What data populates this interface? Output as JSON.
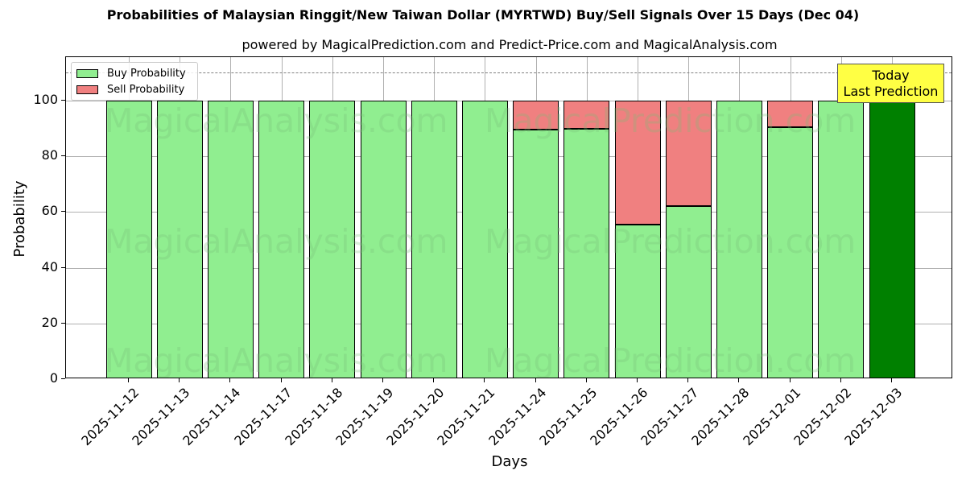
{
  "header": {
    "title": "Probabilities of Malaysian Ringgit/New Taiwan Dollar (MYRTWD) Buy/Sell Signals Over 15 Days (Dec 04)",
    "subtitle": "powered by MagicalPrediction.com and Predict-Price.com and MagicalAnalysis.com"
  },
  "axes": {
    "xlabel": "Days",
    "ylabel": "Probability",
    "yticks": [
      "0",
      "20",
      "40",
      "60",
      "80",
      "100"
    ]
  },
  "legend": {
    "buy_label": "Buy Probability",
    "sell_label": "Sell Probability"
  },
  "annotation": {
    "line1": "Today",
    "line2": "Last Prediction"
  },
  "watermarks": [
    "MagicalAnalysis.com",
    "MagicalPrediction.com"
  ],
  "colors": {
    "buy": "#90ee90",
    "sell": "#f08080",
    "today_buy": "#008000",
    "annotation_bg": "#ffff44"
  },
  "chart_data": {
    "type": "bar",
    "stacked": true,
    "title": "Probabilities of Malaysian Ringgit/New Taiwan Dollar (MYRTWD) Buy/Sell Signals Over 15 Days (Dec 04)",
    "subtitle": "powered by MagicalPrediction.com and Predict-Price.com and MagicalAnalysis.com",
    "xlabel": "Days",
    "ylabel": "Probability",
    "ylim": [
      0,
      115
    ],
    "yticks": [
      0,
      20,
      40,
      60,
      80,
      100
    ],
    "grid": true,
    "legend_position": "upper left",
    "categories": [
      "2025-11-12",
      "2025-11-13",
      "2025-11-14",
      "2025-11-17",
      "2025-11-18",
      "2025-11-19",
      "2025-11-20",
      "2025-11-21",
      "2025-11-24",
      "2025-11-25",
      "2025-11-26",
      "2025-11-27",
      "2025-11-28",
      "2025-12-01",
      "2025-12-02",
      "2025-12-03"
    ],
    "series": [
      {
        "name": "Buy Probability",
        "color": "#90ee90",
        "values": [
          100,
          100,
          100,
          100,
          100,
          100,
          100,
          100,
          89.6,
          89.9,
          55.6,
          62.1,
          100,
          90.4,
          100,
          100
        ]
      },
      {
        "name": "Sell Probability",
        "color": "#f08080",
        "values": [
          0,
          0,
          0,
          0,
          0,
          0,
          0,
          0,
          10.4,
          10.1,
          44.4,
          37.9,
          0,
          9.6,
          0,
          0
        ]
      }
    ],
    "highlight": {
      "category": "2025-12-03",
      "color": "#008000",
      "label": "Today\nLast Prediction"
    },
    "reference_line": {
      "y": 110,
      "style": "dashed",
      "color": "#808080"
    }
  }
}
